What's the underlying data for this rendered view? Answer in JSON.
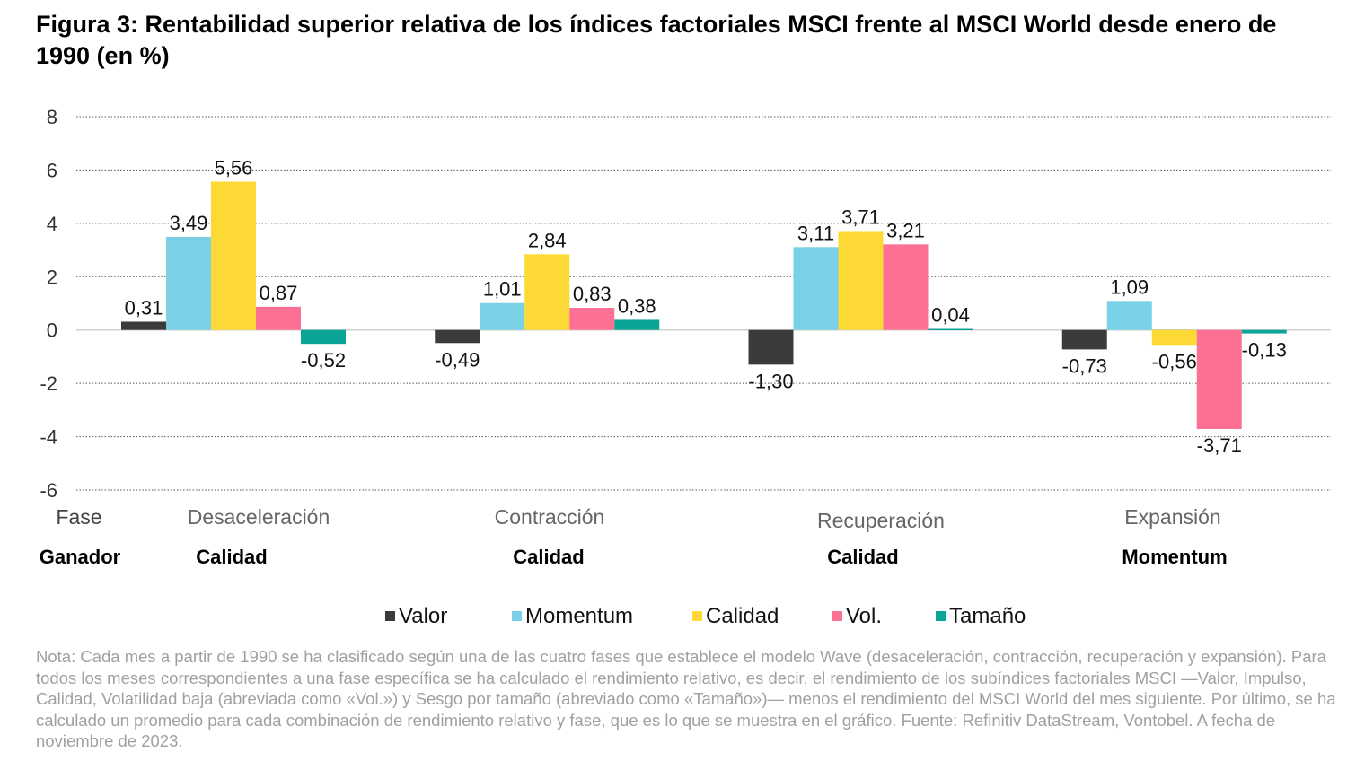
{
  "title": "Figura 3: Rentabilidad superior relativa de los índices factoriales MSCI frente al MSCI World desde enero de 1990 (en %)",
  "chart_data": {
    "type": "bar",
    "categories": [
      "Desaceleración",
      "Contracción",
      "Recuperación",
      "Expansión"
    ],
    "category_row_label": "Fase",
    "winner_row_label": "Ganador",
    "winners": [
      "Calidad",
      "Calidad",
      "Calidad",
      "Momentum"
    ],
    "series": [
      {
        "name": "Valor",
        "color": "#3a3b3a",
        "values": [
          0.31,
          -0.49,
          -1.3,
          -0.73
        ],
        "labels": [
          "0,31",
          "-0,49",
          "-1,30",
          "-0,73"
        ]
      },
      {
        "name": "Momentum",
        "color": "#7ad0e4",
        "values": [
          3.49,
          1.01,
          3.11,
          1.09
        ],
        "labels": [
          "3,49",
          "1,01",
          "3,11",
          "1,09"
        ]
      },
      {
        "name": "Calidad",
        "color": "#fcd934",
        "values": [
          5.56,
          2.84,
          3.71,
          -0.56
        ],
        "labels": [
          "5,56",
          "2,84",
          "3,71",
          "-0,56"
        ]
      },
      {
        "name": "Vol.",
        "color": "#fc7094",
        "values": [
          0.87,
          0.83,
          3.21,
          -3.71
        ],
        "labels": [
          "0,87",
          "0,83",
          "3,21",
          "-3,71"
        ]
      },
      {
        "name": "Tamaño",
        "color": "#0aa596",
        "values": [
          -0.52,
          0.38,
          0.04,
          -0.13
        ],
        "labels": [
          "-0,52",
          "0,38",
          "0,04",
          "-0,13"
        ]
      }
    ],
    "ylim": [
      -6,
      8
    ],
    "yticks": [
      8,
      6,
      4,
      2,
      0,
      -2,
      -4,
      -6
    ],
    "grid": true,
    "legend": "bottom"
  },
  "note": "Nota: Cada mes a partir de 1990 se ha clasificado según una de las cuatro fases que establece el modelo Wave (desaceleración, contracción, recuperación y expansión). Para todos los meses correspondientes a una fase específica se ha calculado el rendimiento relativo, es decir, el rendimiento de los subíndices factoriales MSCI —Valor, Impulso, Calidad, Volatilidad baja (abreviada como «Vol.») y Sesgo por tamaño (abreviado como «Tamaño»)— menos el rendimiento del MSCI World del mes siguiente. Por último, se ha calculado un promedio para cada combinación de rendimiento relativo y fase, que es lo que se muestra en el gráfico. Fuente: Refinitiv DataStream, Vontobel. A fecha de noviembre de 2023."
}
